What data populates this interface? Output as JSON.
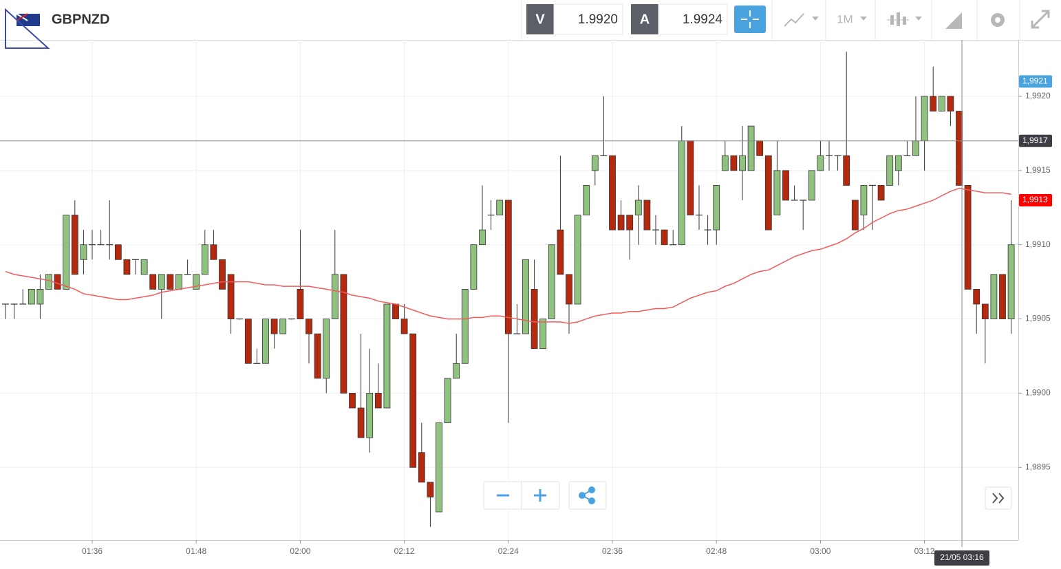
{
  "header": {
    "symbol": "GBPNZD",
    "sell_label": "V",
    "sell_price": "1.9920",
    "buy_label": "A",
    "buy_price": "1.9924",
    "timeframe": "1M"
  },
  "chart_data": {
    "type": "candlestick",
    "categories": [
      null,
      null,
      null,
      null,
      null,
      null,
      null,
      null,
      null,
      null,
      "01:36",
      null,
      null,
      null,
      null,
      null,
      null,
      null,
      null,
      null,
      null,
      null,
      "01:48",
      null,
      null,
      null,
      null,
      null,
      null,
      null,
      null,
      null,
      null,
      null,
      "02:00",
      null,
      null,
      null,
      null,
      null,
      null,
      null,
      null,
      null,
      null,
      null,
      "02:12",
      null,
      null,
      null,
      null,
      null,
      null,
      null,
      null,
      null,
      null,
      null,
      "02:24",
      null,
      null,
      null,
      null,
      null,
      null,
      null,
      null,
      null,
      null,
      null,
      "02:36",
      null,
      null,
      null,
      null,
      null,
      null,
      null,
      null,
      null,
      null,
      null,
      "02:48",
      null,
      null,
      null,
      null,
      null,
      null,
      null,
      null,
      null,
      null,
      null,
      "03:00",
      null,
      null,
      null,
      null,
      null,
      null,
      null,
      null,
      null,
      null,
      null,
      "03:12",
      null,
      null,
      null,
      null,
      null,
      null,
      null,
      null,
      null,
      null
    ],
    "open": [
      1.9906,
      1.9906,
      1.9906,
      1.9906,
      1.9906,
      1.9907,
      1.9908,
      1.9907,
      1.9912,
      1.9909,
      1.991,
      1.991,
      1.991,
      1.991,
      1.9909,
      1.9909,
      1.9908,
      1.9908,
      1.9907,
      1.9908,
      1.9907,
      1.9908,
      1.9907,
      1.9908,
      1.991,
      1.9909,
      1.9908,
      1.9905,
      1.9905,
      1.9902,
      1.9902,
      1.9905,
      1.9904,
      1.9905,
      1.9907,
      1.9905,
      1.9904,
      1.9901,
      1.9905,
      1.9908,
      1.99,
      1.9899,
      1.9897,
      1.99,
      1.9899,
      1.9906,
      1.9905,
      1.9904,
      1.9896,
      1.9894,
      1.9892,
      1.9898,
      1.9901,
      1.9902,
      1.9907,
      1.991,
      1.9912,
      1.9912,
      1.9913,
      1.9904,
      1.9904,
      1.9907,
      1.9903,
      1.9905,
      1.9911,
      1.9908,
      1.9906,
      1.9912,
      1.9915,
      1.9916,
      1.9916,
      1.9912,
      1.9912,
      1.9912,
      1.9913,
      1.9911,
      1.9911,
      1.991,
      1.991,
      1.9917,
      1.9912,
      1.9911,
      1.9911,
      1.9915,
      1.9916,
      1.9915,
      1.9915,
      1.9917,
      1.9916,
      1.9912,
      1.9915,
      1.9913,
      1.9913,
      1.9913,
      1.9915,
      1.9916,
      1.9916,
      1.9916,
      1.9913,
      1.9912,
      1.9914,
      1.9914,
      1.9914,
      1.9915,
      1.9916,
      1.9916,
      1.9917,
      1.992,
      1.9919,
      1.992,
      1.9919,
      1.9914,
      1.9907,
      1.9906,
      1.9905,
      1.9908,
      1.9905
    ],
    "high": [
      1.9906,
      1.9906,
      1.9907,
      1.9907,
      1.9908,
      1.9908,
      1.9908,
      1.9912,
      1.9913,
      1.9911,
      1.9911,
      1.9911,
      1.9913,
      1.991,
      1.9909,
      1.9909,
      1.9909,
      1.9908,
      1.9908,
      1.9908,
      1.9908,
      1.9909,
      1.9908,
      1.9911,
      1.9911,
      1.9909,
      1.9908,
      1.9905,
      1.9905,
      1.9903,
      1.9905,
      1.9905,
      1.9905,
      1.9905,
      1.9911,
      1.9905,
      1.9904,
      1.9905,
      1.9911,
      1.9908,
      1.99,
      1.9904,
      1.9903,
      1.9902,
      1.9906,
      1.9906,
      1.9906,
      1.9904,
      1.9898,
      1.9894,
      1.9898,
      1.9901,
      1.9904,
      1.9907,
      1.991,
      1.9914,
      1.9913,
      1.9913,
      1.9913,
      1.9906,
      1.9909,
      1.9909,
      1.9905,
      1.991,
      1.9916,
      1.9908,
      1.9912,
      1.9914,
      1.9916,
      1.992,
      1.9916,
      1.9913,
      1.9912,
      1.9914,
      1.9913,
      1.9912,
      1.9911,
      1.9911,
      1.9918,
      1.9917,
      1.9914,
      1.9912,
      1.9914,
      1.9917,
      1.9916,
      1.9918,
      1.9918,
      1.9917,
      1.9916,
      1.9917,
      1.9915,
      1.9914,
      1.9913,
      1.9915,
      1.9917,
      1.9917,
      1.9916,
      1.9923,
      1.9913,
      1.9914,
      1.9914,
      1.9914,
      1.9916,
      1.9916,
      1.9917,
      1.992,
      1.992,
      1.9922,
      1.992,
      1.992,
      1.9919,
      1.9914,
      1.9907,
      1.9906,
      1.9908,
      1.9908,
      1.9913
    ],
    "low": [
      1.9905,
      1.9905,
      1.9906,
      1.9906,
      1.9905,
      1.9907,
      1.9907,
      1.9907,
      1.9908,
      1.9908,
      1.9909,
      1.991,
      1.9909,
      1.9909,
      1.9908,
      1.9908,
      1.9908,
      1.9907,
      1.9905,
      1.9907,
      1.9907,
      1.9908,
      1.9907,
      1.9908,
      1.9909,
      1.9907,
      1.9904,
      1.9905,
      1.9902,
      1.9902,
      1.9902,
      1.9903,
      1.9904,
      1.9905,
      1.9905,
      1.9902,
      1.9901,
      1.99,
      1.9905,
      1.99,
      1.9899,
      1.9897,
      1.9896,
      1.9899,
      1.9899,
      1.9905,
      1.9904,
      1.9895,
      1.9894,
      1.9891,
      1.9892,
      1.9898,
      1.9901,
      1.9902,
      1.9907,
      1.991,
      1.9911,
      1.9912,
      1.9898,
      1.9904,
      1.9904,
      1.9903,
      1.9903,
      1.9905,
      1.9908,
      1.9904,
      1.9906,
      1.9912,
      1.9914,
      1.9916,
      1.9911,
      1.9911,
      1.9909,
      1.991,
      1.9911,
      1.991,
      1.991,
      1.991,
      1.991,
      1.9912,
      1.9911,
      1.991,
      1.991,
      1.9915,
      1.9915,
      1.9913,
      1.9915,
      1.9916,
      1.9911,
      1.9912,
      1.9913,
      1.9913,
      1.9911,
      1.9913,
      1.9915,
      1.9915,
      1.9915,
      1.9914,
      1.9911,
      1.9911,
      1.9911,
      1.9913,
      1.9914,
      1.9914,
      1.9916,
      1.9916,
      1.9915,
      1.9919,
      1.9919,
      1.9918,
      1.9914,
      1.9907,
      1.9904,
      1.9902,
      1.9905,
      1.9905,
      1.9904
    ],
    "close": [
      1.9906,
      1.9906,
      1.9906,
      1.9907,
      1.9907,
      1.9908,
      1.9907,
      1.9912,
      1.9908,
      1.991,
      1.991,
      1.991,
      1.991,
      1.9909,
      1.9908,
      1.9909,
      1.9909,
      1.9907,
      1.9908,
      1.9907,
      1.9908,
      1.9908,
      1.9908,
      1.991,
      1.9909,
      1.9907,
      1.9905,
      1.9905,
      1.9902,
      1.9902,
      1.9905,
      1.9904,
      1.9905,
      1.9905,
      1.9905,
      1.9904,
      1.9901,
      1.9905,
      1.9908,
      1.99,
      1.9899,
      1.9897,
      1.99,
      1.9899,
      1.9906,
      1.9905,
      1.9904,
      1.9895,
      1.9894,
      1.9893,
      1.9898,
      1.9901,
      1.9902,
      1.9907,
      1.991,
      1.9911,
      1.9912,
      1.9913,
      1.9904,
      1.9904,
      1.9909,
      1.9903,
      1.9905,
      1.991,
      1.9908,
      1.9906,
      1.9912,
      1.9914,
      1.9916,
      1.9916,
      1.9911,
      1.9911,
      1.9911,
      1.9913,
      1.9911,
      1.9911,
      1.991,
      1.991,
      1.9917,
      1.9912,
      1.9912,
      1.9911,
      1.9914,
      1.9916,
      1.9915,
      1.9916,
      1.9918,
      1.9916,
      1.9911,
      1.9915,
      1.9913,
      1.9913,
      1.9913,
      1.9915,
      1.9916,
      1.9916,
      1.9916,
      1.9914,
      1.9911,
      1.9914,
      1.9914,
      1.9913,
      1.9916,
      1.9916,
      1.9916,
      1.9917,
      1.992,
      1.9919,
      1.992,
      1.9919,
      1.9914,
      1.9907,
      1.9906,
      1.9905,
      1.9908,
      1.9905,
      1.991
    ],
    "up_color": "#8fc27f",
    "down_color": "#b5290e",
    "moving_average": {
      "color": "#f25a5a",
      "values": [
        1.99082,
        1.9908,
        1.99079,
        1.99078,
        1.99077,
        1.99076,
        1.99074,
        1.99072,
        1.9907,
        1.99067,
        1.99066,
        1.99065,
        1.99064,
        1.99063,
        1.99063,
        1.99064,
        1.99065,
        1.99066,
        1.99068,
        1.99069,
        1.9907,
        1.99071,
        1.99072,
        1.99073,
        1.99074,
        1.99075,
        1.99075,
        1.99075,
        1.99075,
        1.99074,
        1.99073,
        1.99073,
        1.99072,
        1.99072,
        1.99072,
        1.99072,
        1.99071,
        1.9907,
        1.99069,
        1.99068,
        1.99066,
        1.99065,
        1.99064,
        1.99062,
        1.99061,
        1.9906,
        1.99058,
        1.99056,
        1.99054,
        1.99052,
        1.99051,
        1.9905,
        1.9905,
        1.9905,
        1.99051,
        1.99051,
        1.99052,
        1.99052,
        1.99051,
        1.9905,
        1.99049,
        1.99048,
        1.99048,
        1.99048,
        1.99048,
        1.99047,
        1.99048,
        1.9905,
        1.99052,
        1.99053,
        1.99054,
        1.99054,
        1.99055,
        1.99055,
        1.99056,
        1.99057,
        1.99057,
        1.99058,
        1.99061,
        1.99064,
        1.99066,
        1.99068,
        1.99069,
        1.99072,
        1.99074,
        1.99077,
        1.9908,
        1.99082,
        1.99083,
        1.99086,
        1.99089,
        1.99092,
        1.99094,
        1.99096,
        1.99097,
        1.99099,
        1.99101,
        1.99104,
        1.99108,
        1.99111,
        1.99115,
        1.99118,
        1.99121,
        1.99123,
        1.99124,
        1.99126,
        1.99128,
        1.9913,
        1.99133,
        1.99136,
        1.99138,
        1.99137,
        1.99136,
        1.99135,
        1.99135,
        1.99135,
        1.99134
      ]
    },
    "ylim": [
      1.98901,
      1.99238
    ],
    "yticks": [
      {
        "value": 1.9895,
        "label": "1,9895"
      },
      {
        "value": 1.99,
        "label": "1,9900"
      },
      {
        "value": 1.9905,
        "label": "1,9905"
      },
      {
        "value": 1.991,
        "label": "1,9910"
      },
      {
        "value": 1.9915,
        "label": "1,9915"
      },
      {
        "value": 1.992,
        "label": "1,9920"
      }
    ],
    "grid": true,
    "price_markers": [
      {
        "value": 1.9921,
        "label": "1,9921",
        "color": "#4aa3df"
      },
      {
        "value": 1.9917,
        "label": "1,9917",
        "color": "#3d3f44"
      },
      {
        "value": 1.9913,
        "label": "1,9913",
        "color": "#ff0000"
      }
    ],
    "crosshair_label": "21/05 03:16"
  }
}
